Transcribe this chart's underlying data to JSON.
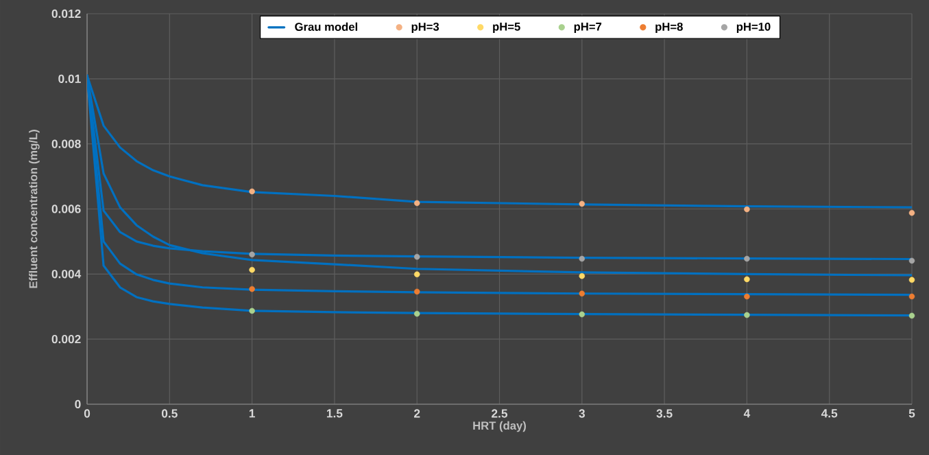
{
  "chart_data": {
    "type": "line",
    "xlabel": "HRT (day)",
    "ylabel": "Effluent concentration (mg/L)",
    "xlim": [
      0,
      5
    ],
    "ylim": [
      0,
      0.012
    ],
    "xticks": [
      0,
      0.5,
      1,
      1.5,
      2,
      2.5,
      3,
      3.5,
      4,
      4.5,
      5
    ],
    "yticks": [
      0,
      0.002,
      0.004,
      0.006,
      0.008,
      0.01,
      0.012
    ],
    "grid": true,
    "legend": "top",
    "series": [
      {
        "name": "Grau model",
        "color": "#0070c0",
        "marker": "none",
        "x": [
          0,
          0.1,
          0.2,
          0.3,
          0.4,
          0.5,
          0.7,
          1,
          1.5,
          2,
          3,
          4,
          5
        ],
        "values": [
          0.0101,
          0.00856,
          0.00789,
          0.00747,
          0.00719,
          0.007,
          0.00673,
          0.00652,
          0.0064,
          0.00622,
          0.00614,
          0.00608,
          0.00605
        ]
      },
      {
        "type": "line",
        "color": "#0070c0",
        "marker": "none",
        "x": [
          0,
          0.1,
          0.2,
          0.3,
          0.4,
          0.5,
          0.7,
          1,
          1.5,
          2,
          3,
          4,
          5
        ],
        "values": [
          0.0101,
          0.00595,
          0.00529,
          0.005,
          0.00487,
          0.00479,
          0.0047,
          0.00462,
          0.00457,
          0.00454,
          0.0045,
          0.00448,
          0.00446
        ]
      },
      {
        "type": "line",
        "color": "#0070c0",
        "marker": "none",
        "x": [
          0,
          0.1,
          0.2,
          0.3,
          0.4,
          0.5,
          0.7,
          1,
          1.5,
          2,
          3,
          4,
          5
        ],
        "values": [
          0.0101,
          0.00709,
          0.00605,
          0.0055,
          0.00515,
          0.00489,
          0.00464,
          0.00443,
          0.0043,
          0.00416,
          0.00405,
          0.004,
          0.00396
        ]
      },
      {
        "type": "line",
        "color": "#0070c0",
        "marker": "none",
        "x": [
          0,
          0.1,
          0.2,
          0.3,
          0.4,
          0.5,
          0.7,
          1,
          1.5,
          2,
          3,
          4,
          5
        ],
        "values": [
          0.0101,
          0.005,
          0.00432,
          0.00399,
          0.00382,
          0.00371,
          0.00359,
          0.00352,
          0.00347,
          0.00344,
          0.0034,
          0.00338,
          0.00336
        ]
      },
      {
        "type": "line",
        "color": "#0070c0",
        "marker": "none",
        "x": [
          0,
          0.1,
          0.2,
          0.3,
          0.4,
          0.5,
          0.7,
          1,
          1.5,
          2,
          3,
          4,
          5
        ],
        "values": [
          0.0101,
          0.00426,
          0.00359,
          0.00329,
          0.00316,
          0.00308,
          0.00297,
          0.00287,
          0.00283,
          0.0028,
          0.00277,
          0.00275,
          0.00273
        ]
      },
      {
        "name": "pH=3",
        "type": "scatter",
        "color": "#f4b183",
        "marker": "circle",
        "x": [
          1,
          2,
          3,
          4,
          5
        ],
        "values": [
          0.00654,
          0.00618,
          0.00616,
          0.00599,
          0.00588
        ]
      },
      {
        "name": "pH=5",
        "type": "scatter",
        "color": "#ffd966",
        "marker": "circle",
        "x": [
          1,
          2,
          3,
          4,
          5
        ],
        "values": [
          0.00413,
          0.00399,
          0.00394,
          0.00384,
          0.00382
        ]
      },
      {
        "name": "pH=7",
        "type": "scatter",
        "color": "#a9d18e",
        "marker": "circle",
        "x": [
          1,
          2,
          3,
          4,
          5
        ],
        "values": [
          0.00287,
          0.00278,
          0.00276,
          0.00274,
          0.00272
        ]
      },
      {
        "name": "pH=8",
        "type": "scatter",
        "color": "#ed7d31",
        "marker": "circle",
        "x": [
          1,
          2,
          3,
          4,
          5
        ],
        "values": [
          0.00354,
          0.00346,
          0.0034,
          0.00331,
          0.00331
        ]
      },
      {
        "name": "pH=10",
        "type": "scatter",
        "color": "#a5a5a5",
        "marker": "circle",
        "x": [
          1,
          2,
          3,
          4,
          5
        ],
        "values": [
          0.0046,
          0.00453,
          0.00447,
          0.00447,
          0.00441
        ]
      }
    ]
  }
}
